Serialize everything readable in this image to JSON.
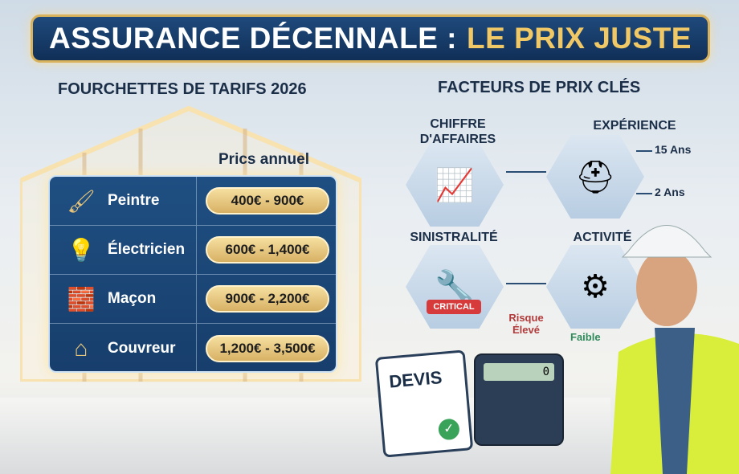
{
  "title": {
    "part1": "ASSURANCE DÉCENNALE :",
    "part2": "LE PRIX JUSTE"
  },
  "left": {
    "heading": "FOURCHETTES DE TARIFS 2026",
    "column_label": "Prics annuel",
    "rows": [
      {
        "icon": "paint-roller-icon",
        "label": "Peintre",
        "range": "400€ - 900€"
      },
      {
        "icon": "lightbulb-icon",
        "label": "Électricien",
        "range": "600€ - 1,400€"
      },
      {
        "icon": "mason-bricks-icon",
        "label": "Maçon",
        "range": "900€ - 2,200€"
      },
      {
        "icon": "roof-icon",
        "label": "Couvreur",
        "range": "1,200€ - 3,500€"
      }
    ]
  },
  "right": {
    "heading": "FACTEURS DE PRIX CLÉS",
    "factors": {
      "revenue": {
        "line1": "CHIFFRE",
        "line2": "D'AFFAIRES",
        "icon": "chart-coins-icon"
      },
      "experience": {
        "label": "EXPÉRIENCE",
        "icon": "hardhat-tape-icon",
        "high": "15 Ans",
        "low": "2 Ans"
      },
      "claims": {
        "label": "SINISTRALITÉ",
        "icon": "cracked-wall-tools-icon",
        "badge": "CRITICAL"
      },
      "activity": {
        "label": "ACTIVITÉ",
        "icon": "workers-gears-icon"
      }
    },
    "risk_high": "Risque Élevé",
    "risk_low": "Faible",
    "quote_label": "DEVIS",
    "calculator_display": "0"
  },
  "colors": {
    "banner": "#173e6c",
    "gold": "#f1c866",
    "critical": "#d63a3a",
    "risk_high": "#b23a3a",
    "risk_low": "#2f8a5a"
  }
}
